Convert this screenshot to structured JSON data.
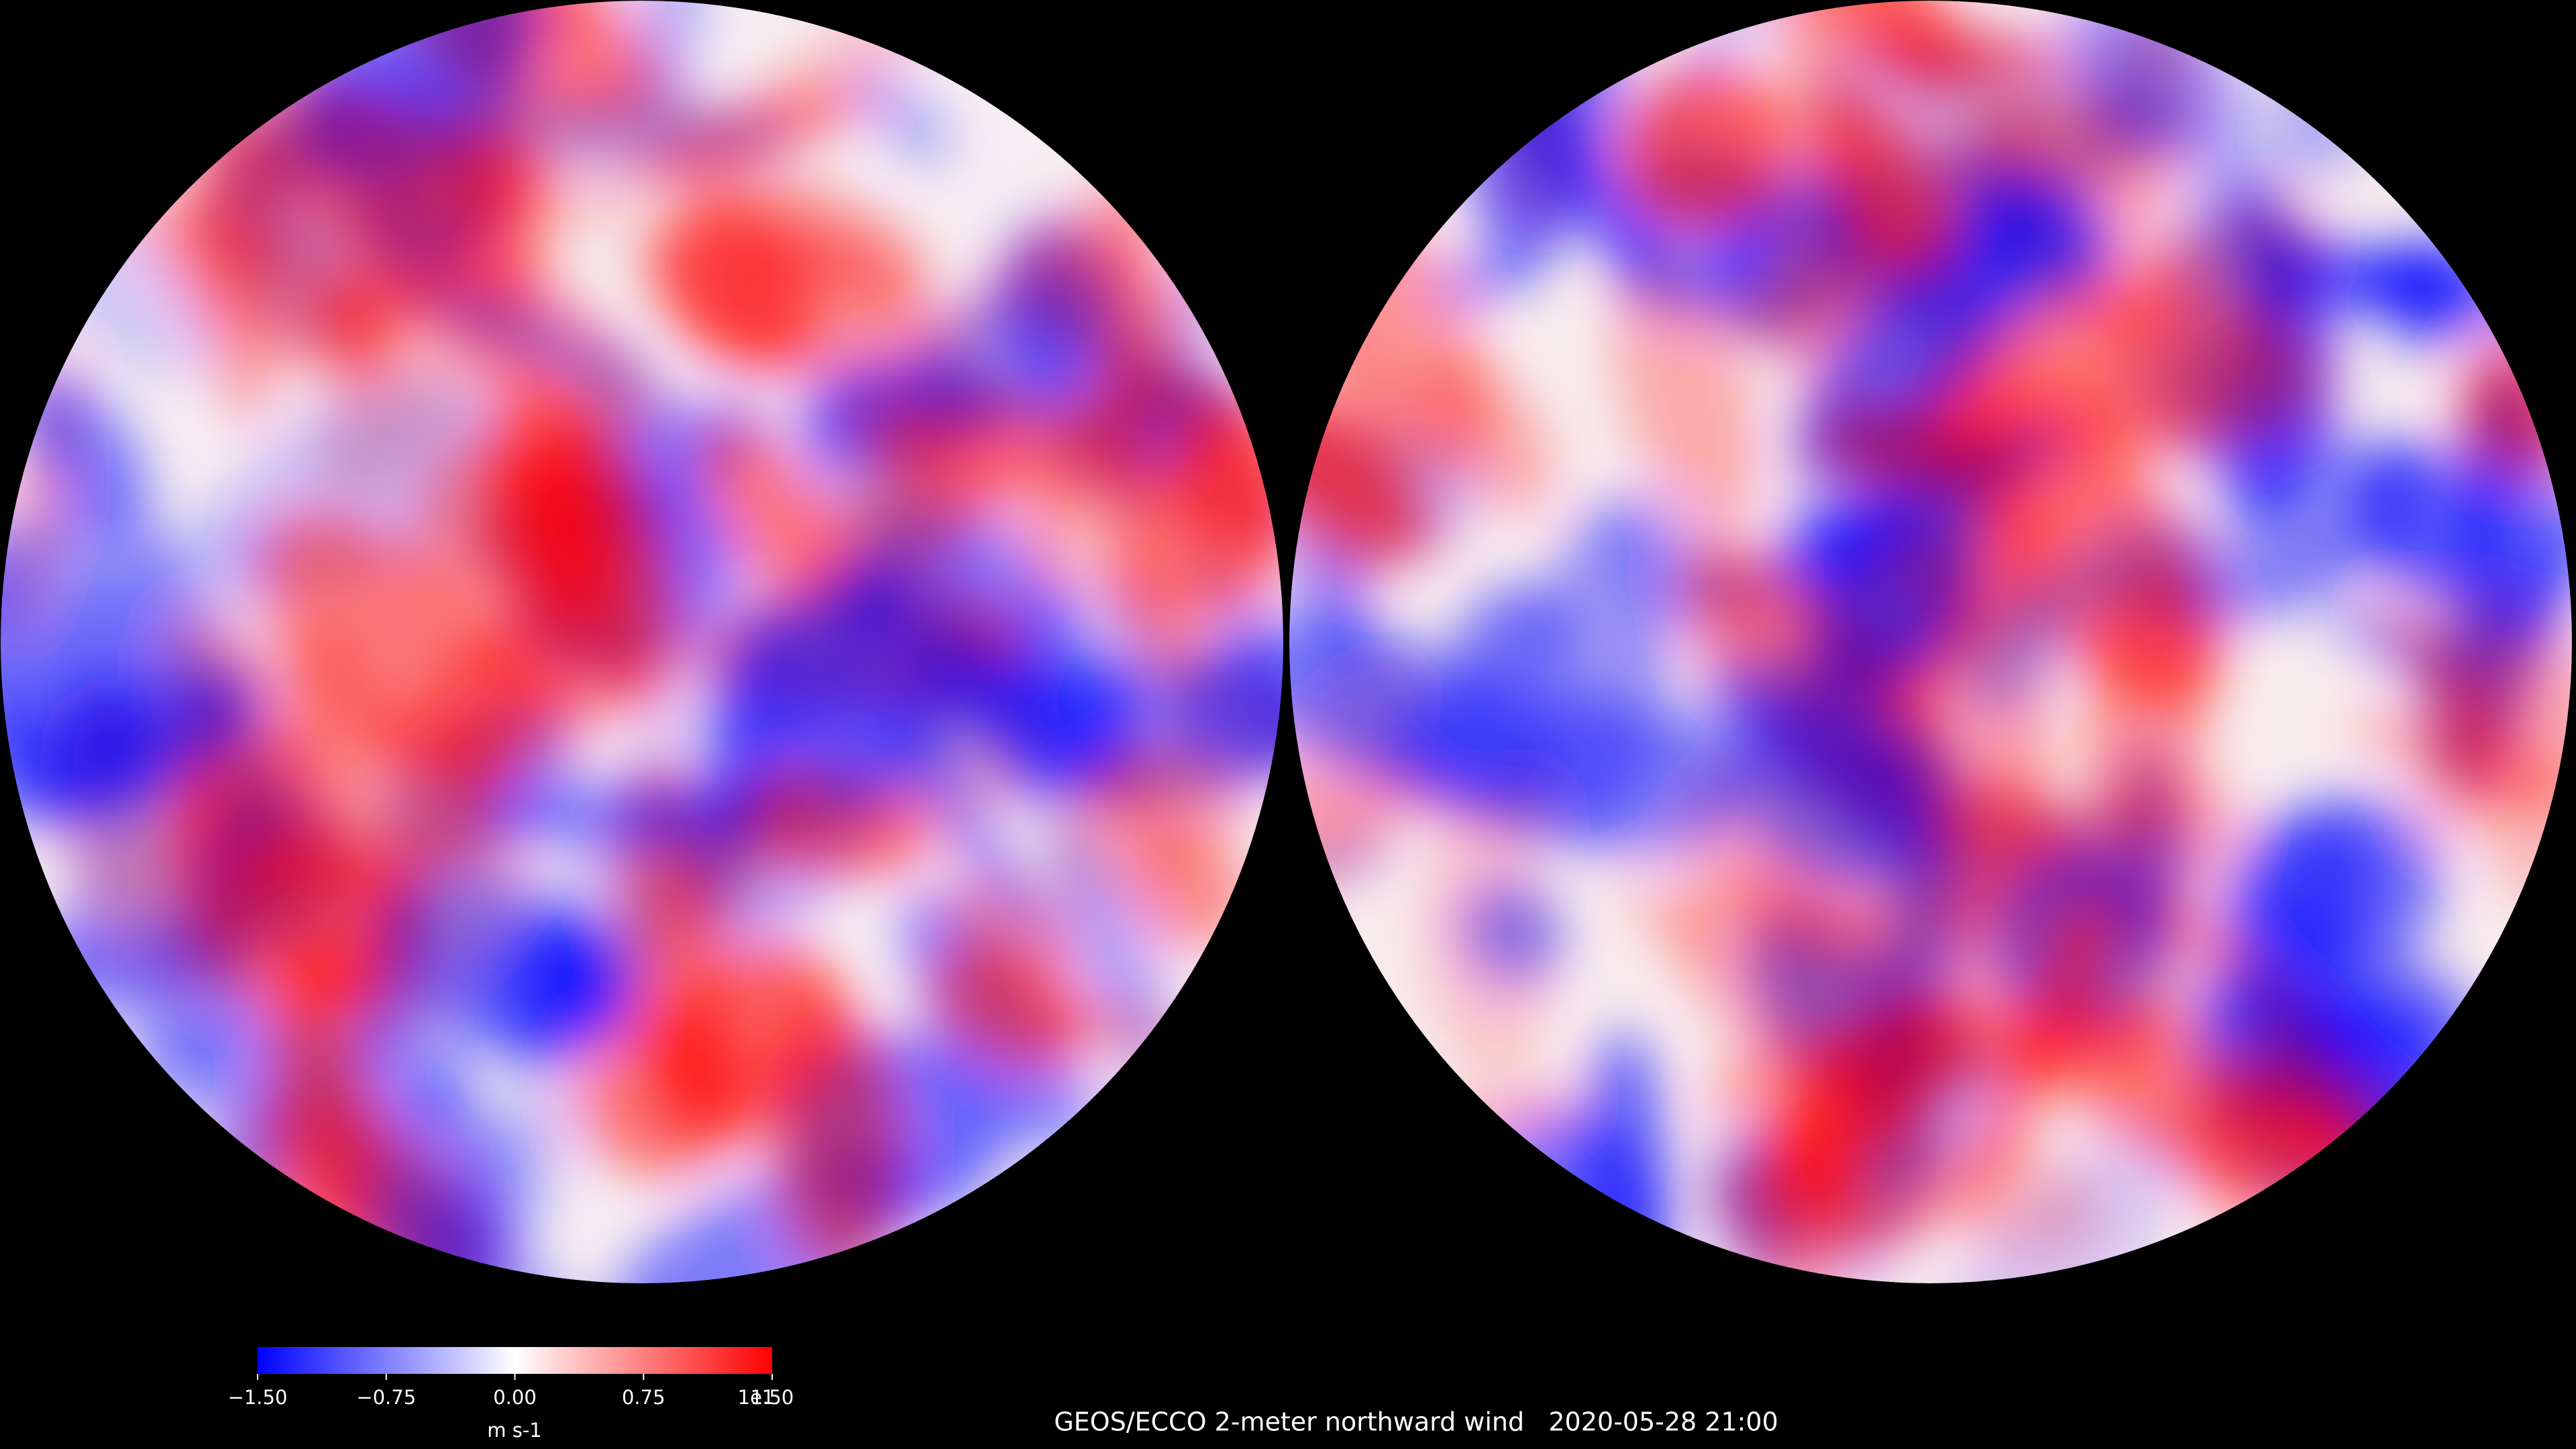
{
  "title": "GEOS/ECCO 2-meter northward wind   2020-05-28 21:00",
  "colorbar": {
    "label": "m s-1",
    "offset_label": "1e1",
    "lim": [
      -1.5,
      1.5
    ],
    "ticks": [
      {
        "value": -1.5,
        "label": "−1.50"
      },
      {
        "value": -0.75,
        "label": "−0.75"
      },
      {
        "value": 0,
        "label": "0.00"
      },
      {
        "value": 0.75,
        "label": "0.75"
      },
      {
        "value": 1.5,
        "label": "1.50"
      }
    ],
    "colors": [
      "#0000ff",
      "#ffffff",
      "#ff0000"
    ]
  }
}
